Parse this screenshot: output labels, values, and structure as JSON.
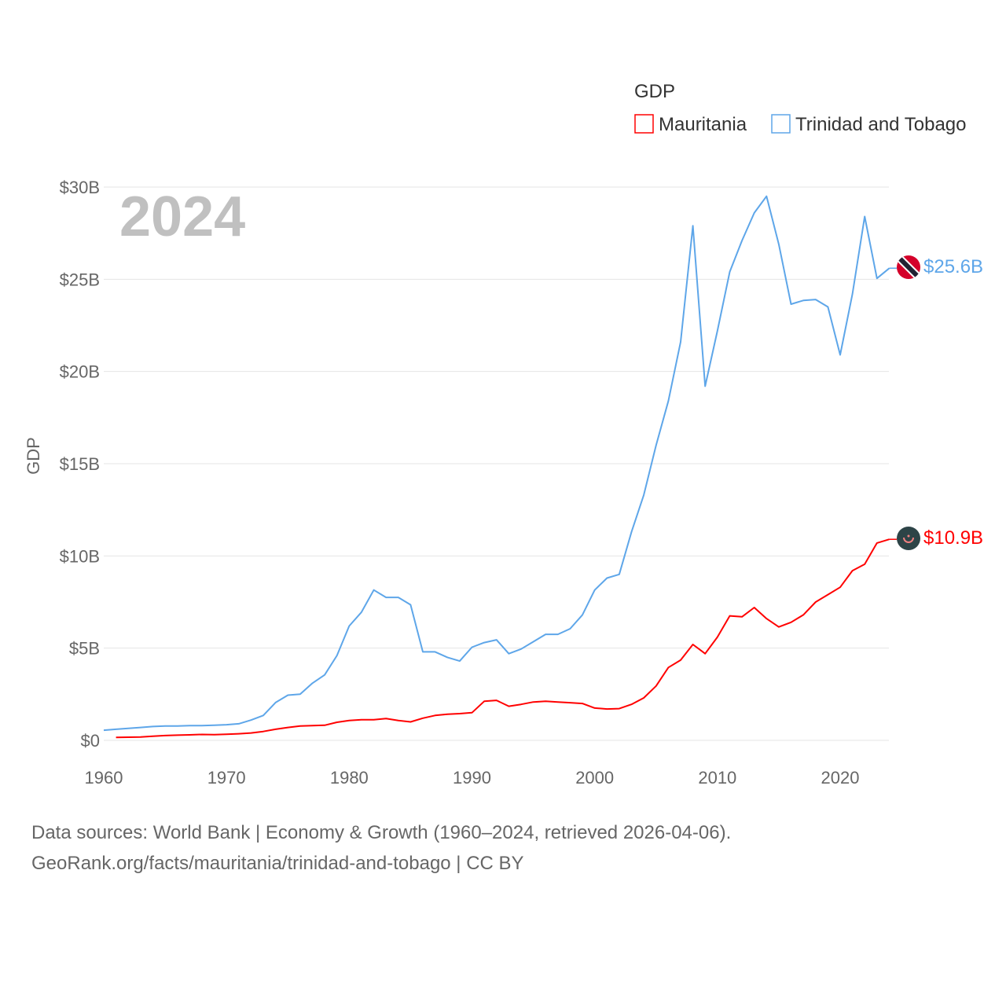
{
  "chart_data": {
    "type": "line",
    "title": "GDP",
    "ylabel": "GDP",
    "xlabel": "",
    "year_label": "2024",
    "xlim": [
      1960,
      2024
    ],
    "ylim": [
      0,
      30
    ],
    "grid": true,
    "legend_placement": "top-right",
    "x_ticks": [
      1960,
      1970,
      1980,
      1990,
      2000,
      2010,
      2020
    ],
    "x_tick_labels": [
      "1960",
      "1970",
      "1980",
      "1990",
      "2000",
      "2010",
      "2020"
    ],
    "y_ticks": [
      0,
      5,
      10,
      15,
      20,
      25,
      30
    ],
    "y_tick_labels": [
      "$0",
      "$5B",
      "$10B",
      "$15B",
      "$20B",
      "$25B",
      "$30B"
    ],
    "series": [
      {
        "name": "Mauritania",
        "color": "#ff0000",
        "end_label": "$10.9B",
        "flag": "mauritania-flag",
        "start_year": 1961,
        "values": [
          0.16,
          0.17,
          0.18,
          0.22,
          0.26,
          0.28,
          0.3,
          0.32,
          0.31,
          0.33,
          0.36,
          0.4,
          0.48,
          0.6,
          0.7,
          0.78,
          0.8,
          0.82,
          0.98,
          1.08,
          1.12,
          1.12,
          1.18,
          1.08,
          1.0,
          1.2,
          1.35,
          1.42,
          1.45,
          1.5,
          2.12,
          2.17,
          1.85,
          1.95,
          2.08,
          2.12,
          2.08,
          2.04,
          2.0,
          1.75,
          1.7,
          1.72,
          1.95,
          2.3,
          2.95,
          3.95,
          4.35,
          5.2,
          4.7,
          5.6,
          6.75,
          6.7,
          7.2,
          6.6,
          6.15,
          6.4,
          6.8,
          7.5,
          7.9,
          8.3,
          9.2,
          9.55,
          10.7,
          10.9
        ]
      },
      {
        "name": "Trinidad and Tobago",
        "color": "#5ea6e9",
        "end_label": "$25.6B",
        "flag": "trinidad-and-tobago-flag",
        "start_year": 1960,
        "values": [
          0.55,
          0.6,
          0.65,
          0.7,
          0.75,
          0.78,
          0.78,
          0.8,
          0.8,
          0.82,
          0.85,
          0.9,
          1.1,
          1.35,
          2.05,
          2.45,
          2.5,
          3.1,
          3.55,
          4.6,
          6.2,
          6.95,
          8.15,
          7.75,
          7.75,
          7.35,
          4.8,
          4.8,
          4.5,
          4.3,
          5.05,
          5.3,
          5.45,
          4.7,
          4.95,
          5.35,
          5.75,
          5.75,
          6.05,
          6.8,
          8.15,
          8.8,
          9.0,
          11.3,
          13.3,
          16.0,
          18.4,
          21.6,
          27.9,
          19.2,
          22.2,
          25.4,
          27.1,
          28.6,
          29.5,
          26.9,
          23.65,
          23.85,
          23.9,
          23.5,
          20.9,
          24.2,
          28.4,
          25.05,
          25.6
        ]
      }
    ]
  },
  "footer": {
    "line1": "Data sources: World Bank | Economy & Growth (1960–2024, retrieved 2026-04-06).",
    "line2": "GeoRank.org/facts/mauritania/trinidad-and-tobago | CC BY"
  }
}
